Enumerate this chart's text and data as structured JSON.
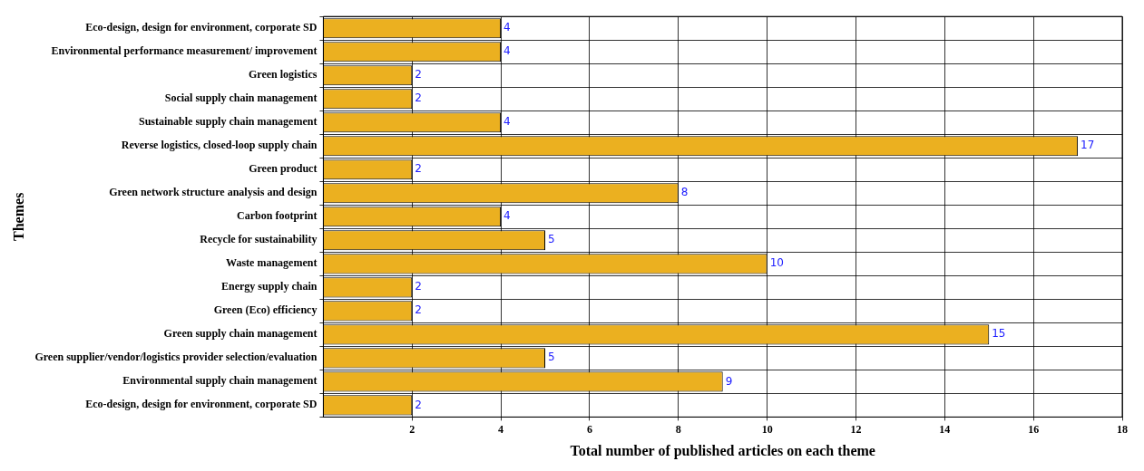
{
  "chart_data": {
    "type": "bar",
    "orientation": "horizontal",
    "xlabel": "Total number of published articles on each theme",
    "ylabel": "Themes",
    "categories": [
      "Eco-design, design for environment, corporate SD",
      "Environmental performance measurement/ improvement",
      "Green logistics",
      "Social supply chain management",
      "Sustainable supply chain management",
      "Reverse logistics, closed-loop supply chain",
      "Green product",
      "Green network structure analysis and design",
      "Carbon footprint",
      "Recycle for sustainability",
      "Waste management",
      "Energy supply chain",
      "Green (Eco) efficiency",
      "Green supply chain management",
      "Green supplier/vendor/logistics provider selection/evaluation",
      "Environmental supply chain management",
      "Eco-design, design for environment, corporate SD"
    ],
    "values": [
      4,
      4,
      2,
      2,
      4,
      17,
      2,
      8,
      4,
      5,
      10,
      2,
      2,
      15,
      5,
      9,
      2
    ],
    "color": "#ebb020",
    "xlim": [
      0,
      18
    ],
    "xticks": [
      2,
      4,
      6,
      8,
      10,
      12,
      14,
      16,
      18
    ],
    "grid": true,
    "data_labels": true
  }
}
